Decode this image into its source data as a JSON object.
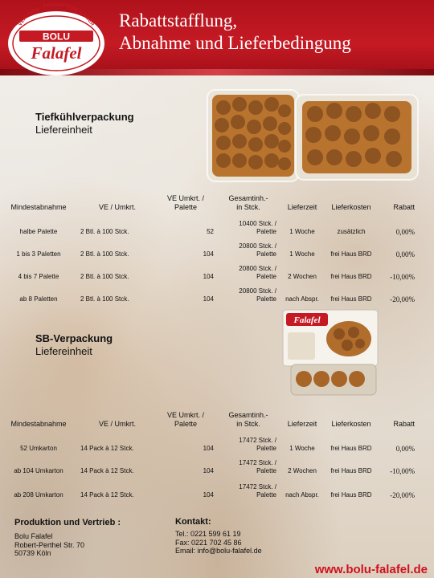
{
  "header": {
    "title_line1": "Rabattstafflung,",
    "title_line2": "Abnahme und Lieferbedingung",
    "logo": {
      "arc_text": "VERTRIEB · PRODUKTION · LAGER",
      "brand_top": "BOLU",
      "brand_main": "Falafel"
    }
  },
  "colors": {
    "brand_red": "#c51a24",
    "website_red": "#d0101e"
  },
  "section1": {
    "title": "Tiefkühlverpackung",
    "subtitle": "Liefereinheit",
    "headers": {
      "min": "Mindestabnahme",
      "ve": "VE / Umkrt.",
      "ve_umkrt": [
        "VE Umkrt. /",
        "Palette"
      ],
      "gesamt": [
        "Gesamtinh.-",
        "in Stck."
      ],
      "lieferzeit": "Lieferzeit",
      "lieferkosten": "Lieferkosten",
      "rabatt": "Rabatt"
    },
    "rows": [
      {
        "min": "halbe Palette",
        "ve": "2 Btl. à 100 Stck.",
        "ve_umkrt": "52",
        "gesamt": [
          "10400 Stck. /",
          "Palette"
        ],
        "lieferzeit": "1 Woche",
        "lieferkosten": "zusätzlich",
        "rabatt": "0,00%"
      },
      {
        "min": "1 bis 3 Paletten",
        "ve": "2 Btl. à 100 Stck.",
        "ve_umkrt": "104",
        "gesamt": [
          "20800 Stck. /",
          "Palette"
        ],
        "lieferzeit": "1 Woche",
        "lieferkosten": "frei Haus BRD",
        "rabatt": "0,00%"
      },
      {
        "min": "4 bis 7 Palette",
        "ve": "2 Btl. à 100 Stck.",
        "ve_umkrt": "104",
        "gesamt": [
          "20800 Stck. /",
          "Palette"
        ],
        "lieferzeit": "2 Wochen",
        "lieferkosten": "frei Haus BRD",
        "rabatt": "-10,00%"
      },
      {
        "min": "ab 8 Paletten",
        "ve": "2 Btl. à 100 Stck.",
        "ve_umkrt": "104",
        "gesamt": [
          "20800 Stck. /",
          "Palette"
        ],
        "lieferzeit": "nach Abspr.",
        "lieferkosten": "frei Haus BRD",
        "rabatt": "-20,00%"
      }
    ]
  },
  "section2": {
    "title": "SB-Verpackung",
    "subtitle": "Liefereinheit",
    "pack_label": "Falafel",
    "headers": {
      "min": "Mindestabnahme",
      "ve": "VE / Umkrt.",
      "ve_umkrt": [
        "VE Umkrt. /",
        "Palette"
      ],
      "gesamt": [
        "Gesamtinh.-",
        "in Stck."
      ],
      "lieferzeit": "Lieferzeit",
      "lieferkosten": "Lieferkosten",
      "rabatt": "Rabatt"
    },
    "rows": [
      {
        "min": "52 Umkarton",
        "ve": "14 Pack à 12 Stck.",
        "ve_umkrt": "104",
        "gesamt": [
          "17472 Stck. /",
          "Palette"
        ],
        "lieferzeit": "1 Woche",
        "lieferkosten": "frei Haus BRD",
        "rabatt": "0,00%"
      },
      {
        "min": "ab 104 Umkarton",
        "ve": "14 Pack à 12 Stck.",
        "ve_umkrt": "104",
        "gesamt": [
          "17472 Stck. /",
          "Palette"
        ],
        "lieferzeit": "2 Wochen",
        "lieferkosten": "frei Haus BRD",
        "rabatt": "-10,00%"
      },
      {
        "min": "ab 208 Umkarton",
        "ve": "14 Pack à 12 Stck.",
        "ve_umkrt": "104",
        "gesamt": [
          "17472 Stck. /",
          "Palette"
        ],
        "lieferzeit": "nach Abspr.",
        "lieferkosten": "frei Haus BRD",
        "rabatt": "-20,00%"
      }
    ]
  },
  "footer": {
    "production": {
      "heading": "Produktion und Vertrieb :",
      "lines": [
        "Bolu Falafel",
        "Robert-Perthel Str. 70",
        "50739 Köln"
      ]
    },
    "contact": {
      "heading": "Kontakt:",
      "lines": [
        "Tel.: 0221 599 61 19",
        "Fax: 0221 702 45  86",
        "Email: info@bolu-falafel.de"
      ]
    },
    "website": "www.bolu-falafel.de"
  }
}
